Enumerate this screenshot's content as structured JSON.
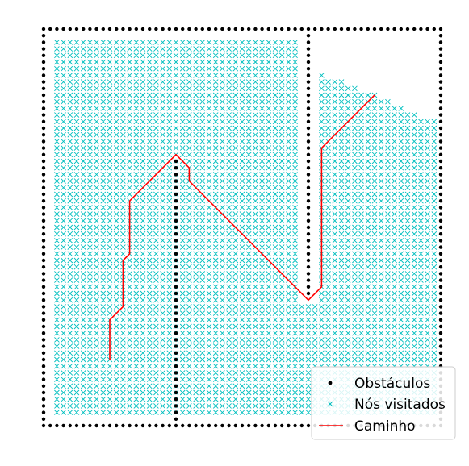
{
  "chart_data": {
    "type": "scatter",
    "title": "",
    "xlabel": "",
    "ylabel": "",
    "axes_visible": false,
    "grid": false,
    "xlim": [
      -1,
      61
    ],
    "ylim": [
      -1,
      61
    ],
    "legend": {
      "placement": "lower-right",
      "entries": [
        {
          "label": "Obstáculos",
          "marker": "dot",
          "color": "#000000"
        },
        {
          "label": "Nós visitados",
          "marker": "x",
          "color": "#00bfbf"
        },
        {
          "label": "Caminho",
          "marker": "line",
          "color": "#ff0000"
        }
      ]
    },
    "series": [
      {
        "name": "Obstáculos",
        "kind": "scatter",
        "color": "#000000",
        "segments": [
          {
            "from": [
              0,
              0
            ],
            "to": [
              60,
              0
            ]
          },
          {
            "from": [
              0,
              60
            ],
            "to": [
              60,
              60
            ]
          },
          {
            "from": [
              0,
              0
            ],
            "to": [
              0,
              60
            ]
          },
          {
            "from": [
              60,
              0
            ],
            "to": [
              60,
              60
            ]
          },
          {
            "from": [
              20,
              0
            ],
            "to": [
              20,
              40
            ]
          },
          {
            "from": [
              40,
              20
            ],
            "to": [
              40,
              60
            ]
          }
        ]
      },
      {
        "name": "Nós visitados",
        "kind": "scatter",
        "color": "#00bfbf",
        "regions": [
          {
            "x": [
              2,
              38
            ],
            "y": [
              2,
              58
            ]
          },
          {
            "x": [
              2,
              19
            ],
            "y": [
              2,
              39
            ]
          },
          {
            "x": [
              22,
              59
            ],
            "y": [
              2,
              18
            ]
          },
          {
            "x": [
              22,
              38
            ],
            "y": [
              2,
              40
            ]
          },
          {
            "x": [
              42,
              59
            ],
            "y": [
              2,
              46
            ]
          }
        ],
        "frontier": [
          [
            42,
            53
          ],
          [
            43,
            52
          ],
          [
            44,
            52
          ],
          [
            45,
            52
          ],
          [
            46,
            51
          ],
          [
            47,
            51
          ],
          [
            48,
            50
          ],
          [
            49,
            50
          ],
          [
            50,
            50
          ],
          [
            51,
            49
          ],
          [
            52,
            49
          ],
          [
            53,
            48
          ],
          [
            54,
            48
          ],
          [
            55,
            47
          ],
          [
            56,
            47
          ],
          [
            57,
            46
          ],
          [
            58,
            46
          ],
          [
            59,
            46
          ]
        ]
      },
      {
        "name": "Caminho",
        "kind": "line",
        "color": "#ff0000",
        "x": [
          10,
          10,
          12,
          12,
          13,
          13,
          20,
          22,
          22,
          40,
          42,
          42,
          50
        ],
        "y": [
          10,
          16,
          18,
          25,
          26,
          34,
          41,
          39,
          37,
          19,
          21,
          42,
          50
        ]
      }
    ]
  }
}
